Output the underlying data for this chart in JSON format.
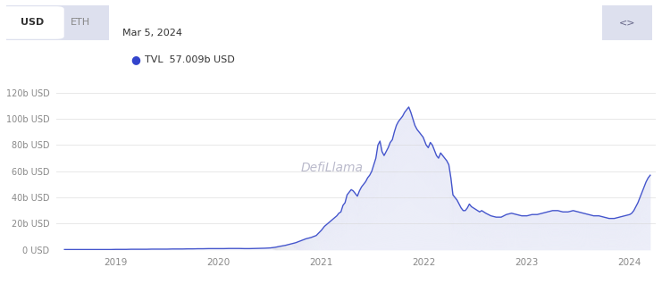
{
  "annotation_date": "Mar 5, 2024",
  "annotation_tvl": "57.009b USD",
  "ytick_values": [
    0,
    20,
    40,
    60,
    80,
    100,
    120
  ],
  "ylim": [
    0,
    130
  ],
  "xlabel_ticks": [
    "2019",
    "2020",
    "2021",
    "2022",
    "2023",
    "2024"
  ],
  "xtick_positions": [
    2019.0,
    2020.0,
    2021.0,
    2022.0,
    2023.0,
    2024.0
  ],
  "xlim": [
    2018.42,
    2024.25
  ],
  "line_color": "#4455cc",
  "fill_color": "#c8ccee",
  "background_color": "#ffffff",
  "grid_color": "#e8e8e8",
  "watermark_text": "DefiLlama",
  "tab_usd_text": "USD",
  "tab_eth_text": "ETH",
  "tab_bg": "#e6e8f0",
  "tab_usd_bg": "#ffffff",
  "dot_color": "#3344cc",
  "tvl_data_x": [
    2018.5,
    2018.55,
    2018.6,
    2018.65,
    2018.7,
    2018.75,
    2018.8,
    2018.85,
    2018.9,
    2018.95,
    2019.0,
    2019.05,
    2019.1,
    2019.15,
    2019.2,
    2019.25,
    2019.3,
    2019.35,
    2019.4,
    2019.45,
    2019.5,
    2019.55,
    2019.6,
    2019.65,
    2019.7,
    2019.75,
    2019.8,
    2019.85,
    2019.9,
    2019.95,
    2020.0,
    2020.05,
    2020.1,
    2020.15,
    2020.2,
    2020.25,
    2020.3,
    2020.35,
    2020.4,
    2020.45,
    2020.5,
    2020.55,
    2020.6,
    2020.65,
    2020.7,
    2020.75,
    2020.8,
    2020.85,
    2020.9,
    2020.95,
    2021.0,
    2021.03,
    2021.06,
    2021.09,
    2021.12,
    2021.15,
    2021.17,
    2021.19,
    2021.21,
    2021.23,
    2021.25,
    2021.27,
    2021.29,
    2021.31,
    2021.33,
    2021.35,
    2021.37,
    2021.39,
    2021.41,
    2021.43,
    2021.45,
    2021.47,
    2021.49,
    2021.51,
    2021.53,
    2021.55,
    2021.57,
    2021.59,
    2021.61,
    2021.63,
    2021.65,
    2021.67,
    2021.69,
    2021.71,
    2021.73,
    2021.75,
    2021.77,
    2021.79,
    2021.81,
    2021.83,
    2021.85,
    2021.87,
    2021.89,
    2021.91,
    2021.93,
    2021.95,
    2021.97,
    2021.99,
    2022.0,
    2022.02,
    2022.04,
    2022.06,
    2022.08,
    2022.1,
    2022.12,
    2022.14,
    2022.16,
    2022.18,
    2022.2,
    2022.22,
    2022.24,
    2022.26,
    2022.28,
    2022.3,
    2022.32,
    2022.34,
    2022.36,
    2022.38,
    2022.4,
    2022.42,
    2022.44,
    2022.46,
    2022.48,
    2022.5,
    2022.52,
    2022.54,
    2022.56,
    2022.58,
    2022.6,
    2022.65,
    2022.7,
    2022.75,
    2022.8,
    2022.85,
    2022.9,
    2022.95,
    2023.0,
    2023.05,
    2023.1,
    2023.15,
    2023.2,
    2023.25,
    2023.3,
    2023.35,
    2023.4,
    2023.45,
    2023.5,
    2023.55,
    2023.6,
    2023.65,
    2023.7,
    2023.75,
    2023.8,
    2023.85,
    2023.9,
    2023.95,
    2024.0,
    2024.02,
    2024.04,
    2024.06,
    2024.08,
    2024.1,
    2024.12,
    2024.14,
    2024.16,
    2024.18,
    2024.2
  ],
  "tvl_data_y": [
    0.3,
    0.3,
    0.3,
    0.3,
    0.3,
    0.3,
    0.3,
    0.3,
    0.3,
    0.3,
    0.4,
    0.4,
    0.4,
    0.5,
    0.5,
    0.5,
    0.5,
    0.6,
    0.6,
    0.6,
    0.6,
    0.7,
    0.7,
    0.7,
    0.8,
    0.8,
    0.9,
    0.9,
    1.0,
    1.0,
    1.0,
    1.0,
    1.1,
    1.1,
    1.1,
    1.0,
    1.0,
    1.1,
    1.2,
    1.3,
    1.5,
    2.0,
    2.8,
    3.5,
    4.5,
    5.5,
    7.0,
    8.5,
    9.5,
    11.0,
    15.0,
    18.0,
    20.0,
    22.0,
    24.0,
    26.0,
    28.0,
    29.0,
    34.0,
    36.0,
    42.0,
    44.0,
    46.0,
    45.0,
    43.0,
    41.0,
    45.0,
    48.0,
    50.0,
    52.0,
    55.0,
    57.0,
    60.0,
    65.0,
    70.0,
    80.0,
    83.0,
    75.0,
    72.0,
    75.0,
    78.0,
    82.0,
    84.0,
    90.0,
    95.0,
    98.0,
    100.0,
    102.0,
    105.0,
    107.0,
    109.0,
    105.0,
    100.0,
    95.0,
    92.0,
    90.0,
    88.0,
    86.0,
    84.0,
    80.0,
    78.0,
    82.0,
    80.0,
    76.0,
    72.0,
    70.0,
    74.0,
    72.0,
    70.0,
    68.0,
    65.0,
    55.0,
    42.0,
    40.0,
    38.0,
    35.0,
    32.0,
    30.0,
    30.0,
    32.0,
    35.0,
    33.0,
    32.0,
    31.0,
    30.0,
    29.0,
    30.0,
    29.0,
    28.0,
    26.0,
    25.0,
    25.0,
    27.0,
    28.0,
    27.0,
    26.0,
    26.0,
    27.0,
    27.0,
    28.0,
    29.0,
    30.0,
    30.0,
    29.0,
    29.0,
    30.0,
    29.0,
    28.0,
    27.0,
    26.0,
    26.0,
    25.0,
    24.0,
    24.0,
    25.0,
    26.0,
    27.0,
    28.0,
    30.0,
    33.0,
    36.0,
    40.0,
    44.0,
    48.0,
    52.0,
    55.0,
    57.0
  ]
}
